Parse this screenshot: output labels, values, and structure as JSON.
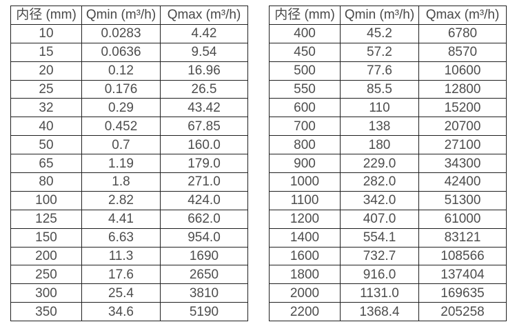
{
  "page": {
    "background_color": "#ffffff",
    "text_color": "#4d4d4d",
    "border_color": "#1f1f1f"
  },
  "chart_data": [
    {
      "type": "table",
      "columns": [
        "内径 (mm)",
        "Qmin (m³/h)",
        "Qmax (m³/h)"
      ],
      "rows": [
        [
          "10",
          "0.0283",
          "4.42"
        ],
        [
          "15",
          "0.0636",
          "9.54"
        ],
        [
          "20",
          "0.12",
          "16.96"
        ],
        [
          "25",
          "0.176",
          "26.5"
        ],
        [
          "32",
          "0.29",
          "43.42"
        ],
        [
          "40",
          "0.452",
          "67.85"
        ],
        [
          "50",
          "0.7",
          "160.0"
        ],
        [
          "65",
          "1.19",
          "179.0"
        ],
        [
          "80",
          "1.8",
          "271.0"
        ],
        [
          "100",
          "2.82",
          "424.0"
        ],
        [
          "125",
          "4.41",
          "662.0"
        ],
        [
          "150",
          "6.63",
          "954.0"
        ],
        [
          "200",
          "11.3",
          "1690"
        ],
        [
          "250",
          "17.6",
          "2650"
        ],
        [
          "300",
          "25.4",
          "3810"
        ],
        [
          "350",
          "34.6",
          "5190"
        ]
      ]
    },
    {
      "type": "table",
      "columns": [
        "内径 (mm)",
        "Qmin (m³/h)",
        "Qmax (m³/h)"
      ],
      "rows": [
        [
          "400",
          "45.2",
          "6780"
        ],
        [
          "450",
          "57.2",
          "8570"
        ],
        [
          "500",
          "77.6",
          "10600"
        ],
        [
          "550",
          "85.5",
          "12800"
        ],
        [
          "600",
          "110",
          "15200"
        ],
        [
          "700",
          "138",
          "20700"
        ],
        [
          "800",
          "180",
          "27100"
        ],
        [
          "900",
          "229.0",
          "34300"
        ],
        [
          "1000",
          "282.0",
          "42400"
        ],
        [
          "1100",
          "342.0",
          "51300"
        ],
        [
          "1200",
          "407.0",
          "61000"
        ],
        [
          "1400",
          "554.1",
          "83121"
        ],
        [
          "1600",
          "732.7",
          "108566"
        ],
        [
          "1800",
          "916.0",
          "137404"
        ],
        [
          "2000",
          "1131.0",
          "169635"
        ],
        [
          "2200",
          "1368.4",
          "205258"
        ]
      ]
    }
  ]
}
